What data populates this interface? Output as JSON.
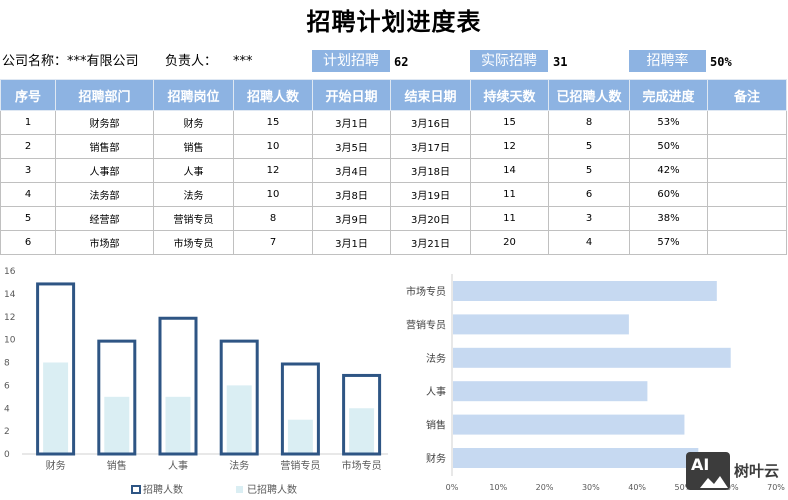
{
  "title": "招聘计划进度表",
  "info": {
    "company_label": "公司名称：***有限公司",
    "owner_label": "负责人：",
    "owner_value": "***",
    "planned_label": "计划招聘",
    "planned_value": "62",
    "actual_label": "实际招聘",
    "actual_value": "31",
    "rate_label": "招聘率",
    "rate_value": "50%",
    "box_color": "#8db3e2"
  },
  "table": {
    "headers": [
      "序号",
      "招聘部门",
      "招聘岗位",
      "招聘人数",
      "开始日期",
      "结束日期",
      "持续天数",
      "已招聘人数",
      "完成进度",
      "备注"
    ],
    "rows": [
      [
        "1",
        "财务部",
        "财务",
        "15",
        "3月1日",
        "3月16日",
        "15",
        "8",
        "53%",
        ""
      ],
      [
        "2",
        "销售部",
        "销售",
        "10",
        "3月5日",
        "3月17日",
        "12",
        "5",
        "50%",
        ""
      ],
      [
        "3",
        "人事部",
        "人事",
        "12",
        "3月4日",
        "3月18日",
        "14",
        "5",
        "42%",
        ""
      ],
      [
        "4",
        "法务部",
        "法务",
        "10",
        "3月8日",
        "3月19日",
        "11",
        "6",
        "60%",
        ""
      ],
      [
        "5",
        "经营部",
        "营销专员",
        "8",
        "3月9日",
        "3月20日",
        "11",
        "3",
        "38%",
        ""
      ],
      [
        "6",
        "市场部",
        "市场专员",
        "7",
        "3月1日",
        "3月21日",
        "20",
        "4",
        "57%",
        ""
      ]
    ]
  },
  "chart_data": [
    {
      "type": "bar",
      "title": "",
      "categories": [
        "财务",
        "销售",
        "人事",
        "法务",
        "营销专员",
        "市场专员"
      ],
      "series": [
        {
          "name": "招聘人数",
          "values": [
            15,
            10,
            12,
            10,
            8,
            7
          ],
          "color": "#2e5584",
          "style": "outline"
        },
        {
          "name": "已招聘人数",
          "values": [
            8,
            5,
            5,
            6,
            3,
            4
          ],
          "color": "#daeef3",
          "style": "fill"
        }
      ],
      "yticks": [
        "0",
        "2",
        "4",
        "6",
        "8",
        "10",
        "12",
        "14",
        "16"
      ],
      "ylim": [
        0,
        16
      ],
      "xlabel": "",
      "ylabel": "",
      "legend_position": "bottom",
      "grid": false
    },
    {
      "type": "bar",
      "orientation": "horizontal",
      "title": "",
      "categories": [
        "市场专员",
        "营销专员",
        "法务",
        "人事",
        "销售",
        "财务"
      ],
      "values": [
        0.57,
        0.38,
        0.6,
        0.42,
        0.5,
        0.53
      ],
      "color": "#c6d9f1",
      "xticks": [
        "0%",
        "10%",
        "20%",
        "30%",
        "40%",
        "50%",
        "60%",
        "70%"
      ],
      "xlim": [
        0,
        0.7
      ],
      "xlabel": "",
      "ylabel": "",
      "grid": false
    }
  ],
  "watermark": {
    "logo_text": "AI",
    "brand": "树叶云"
  }
}
